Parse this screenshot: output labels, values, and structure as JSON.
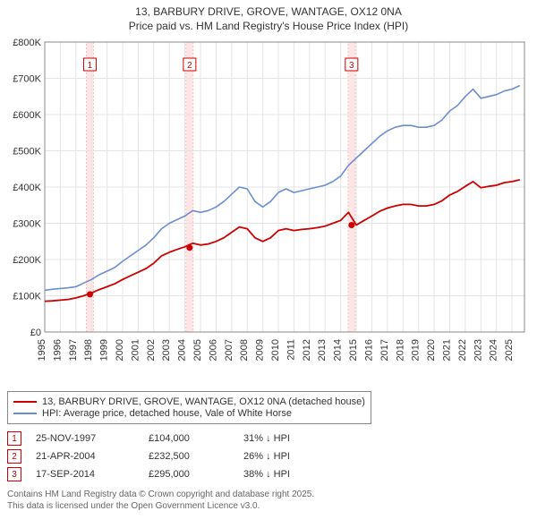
{
  "title_line1": "13, BARBURY DRIVE, GROVE, WANTAGE, OX12 0NA",
  "title_line2": "Price paid vs. HM Land Registry's House Price Index (HPI)",
  "chart": {
    "type": "line",
    "background_color": "#ffffff",
    "grid_color": "#e4e4e4",
    "x": {
      "min": 1995,
      "max": 2025.8,
      "ticks": [
        1995,
        1996,
        1997,
        1998,
        1999,
        2000,
        2001,
        2002,
        2003,
        2004,
        2005,
        2006,
        2007,
        2008,
        2009,
        2010,
        2011,
        2012,
        2013,
        2014,
        2015,
        2016,
        2017,
        2018,
        2019,
        2020,
        2021,
        2022,
        2023,
        2024,
        2025
      ]
    },
    "y": {
      "min": 0,
      "max": 800000,
      "ticks": [
        0,
        100000,
        200000,
        300000,
        400000,
        500000,
        600000,
        700000,
        800000
      ],
      "tick_labels": [
        "£0",
        "£100K",
        "£200K",
        "£300K",
        "£400K",
        "£500K",
        "£600K",
        "£700K",
        "£800K"
      ]
    },
    "series": [
      {
        "name": "hpi",
        "color": "#6a8fd0",
        "width": 1.6,
        "points": [
          [
            1995.0,
            115000
          ],
          [
            1995.5,
            118000
          ],
          [
            1996.0,
            120000
          ],
          [
            1996.5,
            122000
          ],
          [
            1997.0,
            125000
          ],
          [
            1997.5,
            135000
          ],
          [
            1998.0,
            145000
          ],
          [
            1998.5,
            158000
          ],
          [
            1999.0,
            168000
          ],
          [
            1999.5,
            178000
          ],
          [
            2000.0,
            195000
          ],
          [
            2000.5,
            210000
          ],
          [
            2001.0,
            225000
          ],
          [
            2001.5,
            240000
          ],
          [
            2002.0,
            260000
          ],
          [
            2002.5,
            285000
          ],
          [
            2003.0,
            300000
          ],
          [
            2003.5,
            310000
          ],
          [
            2004.0,
            320000
          ],
          [
            2004.5,
            335000
          ],
          [
            2005.0,
            330000
          ],
          [
            2005.5,
            335000
          ],
          [
            2006.0,
            345000
          ],
          [
            2006.5,
            360000
          ],
          [
            2007.0,
            380000
          ],
          [
            2007.5,
            400000
          ],
          [
            2008.0,
            395000
          ],
          [
            2008.5,
            360000
          ],
          [
            2009.0,
            345000
          ],
          [
            2009.5,
            360000
          ],
          [
            2010.0,
            385000
          ],
          [
            2010.5,
            395000
          ],
          [
            2011.0,
            385000
          ],
          [
            2011.5,
            390000
          ],
          [
            2012.0,
            395000
          ],
          [
            2012.5,
            400000
          ],
          [
            2013.0,
            405000
          ],
          [
            2013.5,
            415000
          ],
          [
            2014.0,
            430000
          ],
          [
            2014.5,
            460000
          ],
          [
            2015.0,
            480000
          ],
          [
            2015.5,
            500000
          ],
          [
            2016.0,
            520000
          ],
          [
            2016.5,
            540000
          ],
          [
            2017.0,
            555000
          ],
          [
            2017.5,
            565000
          ],
          [
            2018.0,
            570000
          ],
          [
            2018.5,
            570000
          ],
          [
            2019.0,
            565000
          ],
          [
            2019.5,
            565000
          ],
          [
            2020.0,
            570000
          ],
          [
            2020.5,
            585000
          ],
          [
            2021.0,
            610000
          ],
          [
            2021.5,
            625000
          ],
          [
            2022.0,
            650000
          ],
          [
            2022.5,
            670000
          ],
          [
            2023.0,
            645000
          ],
          [
            2023.5,
            650000
          ],
          [
            2024.0,
            655000
          ],
          [
            2024.5,
            665000
          ],
          [
            2025.0,
            670000
          ],
          [
            2025.5,
            680000
          ]
        ]
      },
      {
        "name": "property",
        "color": "#cc0000",
        "width": 1.8,
        "points": [
          [
            1995.0,
            85000
          ],
          [
            1995.5,
            86000
          ],
          [
            1996.0,
            88000
          ],
          [
            1996.5,
            90000
          ],
          [
            1997.0,
            94000
          ],
          [
            1997.5,
            100000
          ],
          [
            1998.0,
            108000
          ],
          [
            1998.5,
            117000
          ],
          [
            1999.0,
            125000
          ],
          [
            1999.5,
            133000
          ],
          [
            2000.0,
            145000
          ],
          [
            2000.5,
            155000
          ],
          [
            2001.0,
            165000
          ],
          [
            2001.5,
            175000
          ],
          [
            2002.0,
            190000
          ],
          [
            2002.5,
            210000
          ],
          [
            2003.0,
            220000
          ],
          [
            2003.5,
            228000
          ],
          [
            2004.0,
            235000
          ],
          [
            2004.5,
            245000
          ],
          [
            2005.0,
            240000
          ],
          [
            2005.5,
            243000
          ],
          [
            2006.0,
            250000
          ],
          [
            2006.5,
            260000
          ],
          [
            2007.0,
            275000
          ],
          [
            2007.5,
            290000
          ],
          [
            2008.0,
            285000
          ],
          [
            2008.5,
            260000
          ],
          [
            2009.0,
            250000
          ],
          [
            2009.5,
            260000
          ],
          [
            2010.0,
            280000
          ],
          [
            2010.5,
            285000
          ],
          [
            2011.0,
            280000
          ],
          [
            2011.5,
            283000
          ],
          [
            2012.0,
            285000
          ],
          [
            2012.5,
            288000
          ],
          [
            2013.0,
            292000
          ],
          [
            2013.5,
            300000
          ],
          [
            2014.0,
            308000
          ],
          [
            2014.5,
            330000
          ],
          [
            2015.0,
            295000
          ],
          [
            2015.5,
            308000
          ],
          [
            2016.0,
            320000
          ],
          [
            2016.5,
            333000
          ],
          [
            2017.0,
            342000
          ],
          [
            2017.5,
            348000
          ],
          [
            2018.0,
            352000
          ],
          [
            2018.5,
            352000
          ],
          [
            2019.0,
            348000
          ],
          [
            2019.5,
            348000
          ],
          [
            2020.0,
            352000
          ],
          [
            2020.5,
            362000
          ],
          [
            2021.0,
            378000
          ],
          [
            2021.5,
            388000
          ],
          [
            2022.0,
            402000
          ],
          [
            2022.5,
            415000
          ],
          [
            2023.0,
            398000
          ],
          [
            2023.5,
            402000
          ],
          [
            2024.0,
            405000
          ],
          [
            2024.5,
            412000
          ],
          [
            2025.0,
            415000
          ],
          [
            2025.5,
            420000
          ]
        ]
      }
    ],
    "sale_markers": [
      {
        "n": "1",
        "year": 1997.9,
        "price": 104000
      },
      {
        "n": "2",
        "year": 2004.3,
        "price": 232500
      },
      {
        "n": "3",
        "year": 2014.7,
        "price": 295000
      }
    ],
    "marker_band_color": "#ffe5e5",
    "marker_band_border": "#eabcbc",
    "marker_fill": "#cc0000",
    "marker_box_border": "#cc0000",
    "sale_marker_radius": 3.5
  },
  "legend": {
    "items": [
      {
        "color": "#cc0000",
        "label": "13, BARBURY DRIVE, GROVE, WANTAGE, OX12 0NA (detached house)"
      },
      {
        "color": "#6a8fd0",
        "label": "HPI: Average price, detached house, Vale of White Horse"
      }
    ]
  },
  "sales": [
    {
      "n": "1",
      "date": "25-NOV-1997",
      "price": "£104,000",
      "delta": "31% ↓ HPI"
    },
    {
      "n": "2",
      "date": "21-APR-2004",
      "price": "£232,500",
      "delta": "26% ↓ HPI"
    },
    {
      "n": "3",
      "date": "17-SEP-2014",
      "price": "£295,000",
      "delta": "38% ↓ HPI"
    }
  ],
  "credit_line1": "Contains HM Land Registry data © Crown copyright and database right 2025.",
  "credit_line2": "This data is licensed under the Open Government Licence v3.0."
}
